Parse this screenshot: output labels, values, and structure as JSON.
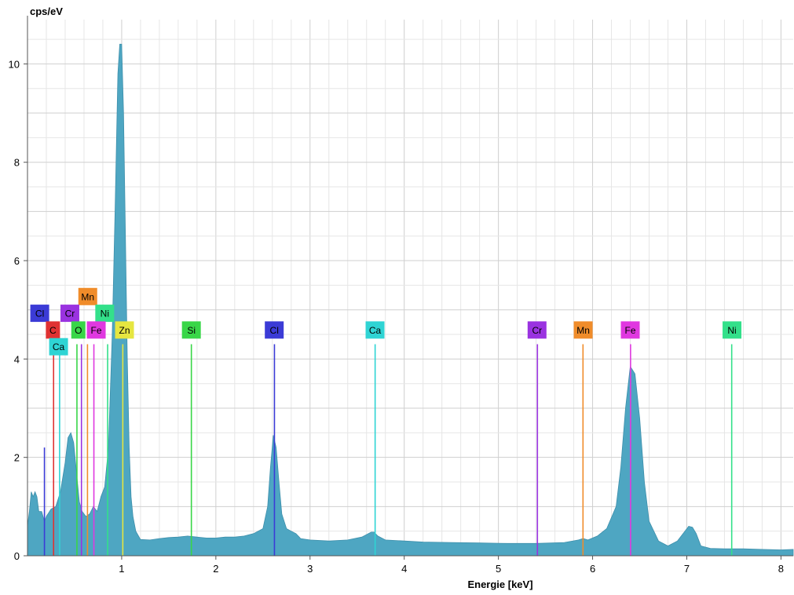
{
  "chart_data": {
    "type": "area",
    "ylabel": "cps/eV",
    "xlabel": "Energie [keV]",
    "xlim": [
      0.0,
      8.13
    ],
    "ylim": [
      0,
      10.9
    ],
    "xticks": [
      1,
      2,
      3,
      4,
      5,
      6,
      7,
      8
    ],
    "yticks": [
      0,
      2,
      4,
      6,
      8,
      10
    ],
    "grid": true,
    "fill_color": "#4ea6c2",
    "spectrum": {
      "x": [
        0.0,
        0.02,
        0.04,
        0.06,
        0.08,
        0.1,
        0.12,
        0.15,
        0.18,
        0.2,
        0.25,
        0.3,
        0.35,
        0.4,
        0.43,
        0.46,
        0.49,
        0.52,
        0.55,
        0.58,
        0.62,
        0.66,
        0.7,
        0.74,
        0.78,
        0.82,
        0.86,
        0.9,
        0.93,
        0.96,
        0.98,
        1.0,
        1.02,
        1.04,
        1.06,
        1.08,
        1.1,
        1.12,
        1.15,
        1.2,
        1.3,
        1.4,
        1.5,
        1.6,
        1.7,
        1.8,
        1.9,
        2.0,
        2.1,
        2.2,
        2.3,
        2.4,
        2.5,
        2.55,
        2.58,
        2.61,
        2.64,
        2.67,
        2.7,
        2.75,
        2.8,
        2.85,
        2.9,
        3.0,
        3.2,
        3.4,
        3.55,
        3.65,
        3.68,
        3.72,
        3.8,
        4.0,
        4.2,
        4.5,
        4.8,
        5.1,
        5.4,
        5.7,
        5.85,
        5.9,
        5.95,
        6.05,
        6.15,
        6.25,
        6.3,
        6.35,
        6.4,
        6.45,
        6.5,
        6.55,
        6.6,
        6.7,
        6.8,
        6.9,
        6.98,
        7.02,
        7.06,
        7.1,
        7.15,
        7.25,
        7.4,
        7.6,
        7.8,
        8.0,
        8.13
      ],
      "y": [
        0.6,
        0.9,
        1.3,
        1.2,
        1.3,
        1.2,
        0.9,
        0.9,
        0.7,
        0.8,
        0.95,
        1.0,
        1.3,
        1.9,
        2.4,
        2.5,
        2.3,
        1.7,
        1.1,
        0.9,
        0.8,
        0.85,
        1.0,
        0.9,
        1.2,
        1.4,
        2.2,
        4.5,
        7.0,
        9.8,
        10.4,
        10.4,
        9.0,
        6.5,
        4.0,
        2.2,
        1.2,
        0.8,
        0.5,
        0.33,
        0.32,
        0.35,
        0.37,
        0.38,
        0.4,
        0.38,
        0.36,
        0.36,
        0.38,
        0.38,
        0.4,
        0.45,
        0.55,
        1.0,
        1.8,
        2.45,
        2.2,
        1.5,
        0.85,
        0.55,
        0.5,
        0.45,
        0.35,
        0.32,
        0.3,
        0.32,
        0.38,
        0.48,
        0.48,
        0.4,
        0.32,
        0.3,
        0.28,
        0.27,
        0.26,
        0.25,
        0.25,
        0.27,
        0.32,
        0.35,
        0.32,
        0.4,
        0.55,
        1.0,
        1.8,
        3.0,
        3.85,
        3.7,
        2.8,
        1.5,
        0.7,
        0.3,
        0.2,
        0.3,
        0.5,
        0.6,
        0.58,
        0.45,
        0.2,
        0.15,
        0.14,
        0.14,
        0.13,
        0.12,
        0.13
      ]
    },
    "element_lines": [
      {
        "name": "Cl",
        "x": 0.18,
        "h": 2.2,
        "color": "#3b3bd6"
      },
      {
        "name": "C",
        "x": 0.277,
        "h": 4.3,
        "color": "#e03232"
      },
      {
        "name": "Ca",
        "x": 0.341,
        "h": 4.2,
        "color": "#2fd4d4"
      },
      {
        "name": "Cr",
        "x": 0.573,
        "h": 4.3,
        "color": "#9a33e0"
      },
      {
        "name": "Mn",
        "x": 0.637,
        "h": 4.3,
        "color": "#f08c2a"
      },
      {
        "name": "O",
        "x": 0.525,
        "h": 4.3,
        "color": "#39d648"
      },
      {
        "name": "Fe",
        "x": 0.705,
        "h": 4.3,
        "color": "#e038e0"
      },
      {
        "name": "Ni",
        "x": 0.851,
        "h": 4.3,
        "color": "#33e08a"
      },
      {
        "name": "Zn",
        "x": 1.012,
        "h": 4.3,
        "color": "#e6e640"
      },
      {
        "name": "Si",
        "x": 1.74,
        "h": 4.3,
        "color": "#39d648"
      },
      {
        "name": "Cl",
        "x": 2.622,
        "h": 4.3,
        "color": "#3b3bd6"
      },
      {
        "name": "Ca",
        "x": 3.691,
        "h": 4.3,
        "color": "#2fd4d4"
      },
      {
        "name": "Cr",
        "x": 5.414,
        "h": 4.3,
        "color": "#9a33e0"
      },
      {
        "name": "Mn",
        "x": 5.898,
        "h": 4.3,
        "color": "#f08c2a"
      },
      {
        "name": "Fe",
        "x": 6.403,
        "h": 4.3,
        "color": "#e038e0"
      },
      {
        "name": "Ni",
        "x": 7.477,
        "h": 4.3,
        "color": "#33e08a"
      }
    ],
    "peak_labels": [
      {
        "text": "Cl",
        "x": 0.13,
        "y": 4.93,
        "color": "#3b3bd6"
      },
      {
        "text": "C",
        "x": 0.27,
        "y": 4.59,
        "color": "#e03232"
      },
      {
        "text": "Ca",
        "x": 0.33,
        "y": 4.25,
        "color": "#2fd4d4"
      },
      {
        "text": "Mn",
        "x": 0.64,
        "y": 5.27,
        "color": "#f08c2a"
      },
      {
        "text": "Cr",
        "x": 0.45,
        "y": 4.93,
        "color": "#9a33e0"
      },
      {
        "text": "Ni",
        "x": 0.82,
        "y": 4.93,
        "color": "#33e08a"
      },
      {
        "text": "O",
        "x": 0.54,
        "y": 4.59,
        "color": "#39d648"
      },
      {
        "text": "Fe",
        "x": 0.73,
        "y": 4.59,
        "color": "#e038e0"
      },
      {
        "text": "Zn",
        "x": 1.03,
        "y": 4.59,
        "color": "#e6e640"
      },
      {
        "text": "Si",
        "x": 1.74,
        "y": 4.59,
        "color": "#39d648"
      },
      {
        "text": "Cl",
        "x": 2.62,
        "y": 4.59,
        "color": "#3b3bd6"
      },
      {
        "text": "Ca",
        "x": 3.69,
        "y": 4.59,
        "color": "#2fd4d4"
      },
      {
        "text": "Cr",
        "x": 5.41,
        "y": 4.59,
        "color": "#9a33e0"
      },
      {
        "text": "Mn",
        "x": 5.9,
        "y": 4.59,
        "color": "#f08c2a"
      },
      {
        "text": "Fe",
        "x": 6.4,
        "y": 4.59,
        "color": "#e038e0"
      },
      {
        "text": "Ni",
        "x": 7.48,
        "y": 4.59,
        "color": "#33e08a"
      }
    ]
  }
}
